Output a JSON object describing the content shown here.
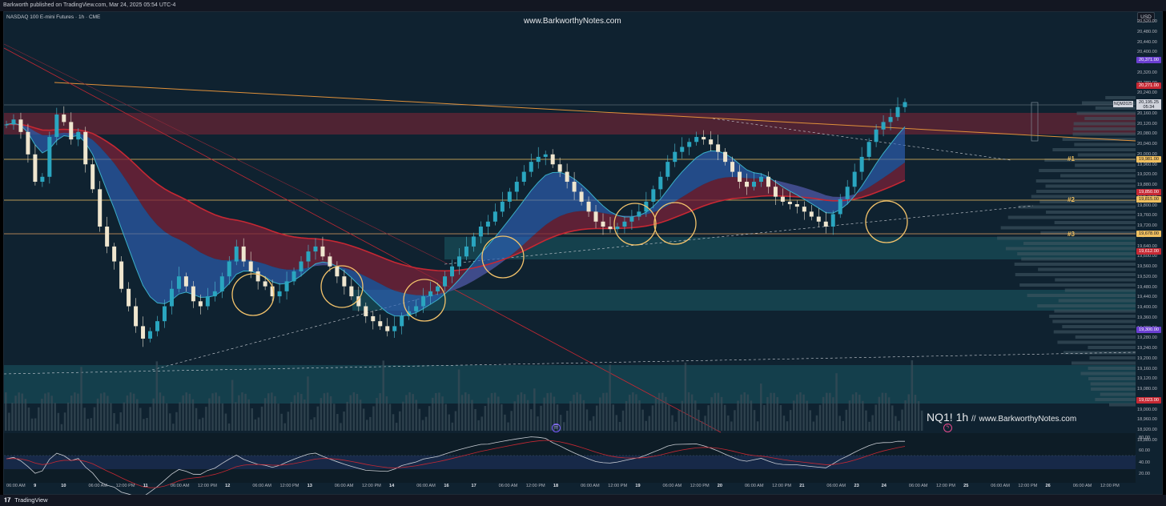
{
  "header": {
    "publisher": "Barkworth published on TradingView.com, Mar 24, 2025 05:54 UTC-4",
    "chart_title": "NASDAQ 100 E-mini Futures · 1h · CME",
    "watermark_top": "www.BarkworthyNotes.com",
    "currency": "USD"
  },
  "watermark": {
    "symbol": "NQ1! 1h",
    "sep": "//",
    "site": "www.BarkworthyNotes.com"
  },
  "price_axis": {
    "labels": [
      "20,520.00",
      "20,480.00",
      "20,440.00",
      "20,400.00",
      "20,360.00",
      "20,320.00",
      "20,280.00",
      "20,240.00",
      "20,200.00",
      "20,160.00",
      "20,120.00",
      "20,080.00",
      "20,040.00",
      "20,000.00",
      "19,960.00",
      "19,920.00",
      "19,880.00",
      "19,840.00",
      "19,800.00",
      "19,760.00",
      "19,720.00",
      "19,680.00",
      "19,640.00",
      "19,600.00",
      "19,560.00",
      "19,520.00",
      "19,480.00",
      "19,440.00",
      "19,400.00",
      "19,360.00",
      "19,320.00",
      "19,280.00",
      "19,240.00",
      "19,200.00",
      "19,160.00",
      "19,120.00",
      "19,080.00",
      "19,040.00",
      "19,000.00",
      "18,960.00",
      "18,920.00",
      "18,880.00"
    ]
  },
  "price_tags": {
    "tag_20371": "20,371.00",
    "tag_20271": "20,271.00",
    "tag_19981": "19,981.00",
    "tag_19850": "19,850.00",
    "tag_19815": "19,815.00",
    "tag_19678": "19,678.00",
    "tag_19612": "19,612.00",
    "tag_19300": "19,300.00",
    "tag_19023": "19,023.00",
    "nqm_symbol": "NQM2025",
    "nqm_price": "20,195.25",
    "nqm_countdown": "05:34",
    "colors": {
      "purple": "#6a3fd1",
      "red": "#c62833",
      "yellow": "#f0c060"
    }
  },
  "levels": {
    "l1": "#1",
    "l2": "#2",
    "l3": "#3"
  },
  "oscillator_axis": [
    "80.00",
    "60.00",
    "40.00",
    "20.00"
  ],
  "time_axis": [
    {
      "t": "06:00 AM"
    },
    {
      "t": "9",
      "day": true
    },
    {
      "t": "10",
      "day": true
    },
    {
      "t": "06:00 AM"
    },
    {
      "t": "12:00 PM"
    },
    {
      "t": "11",
      "day": true
    },
    {
      "t": "06:00 AM"
    },
    {
      "t": "12:00 PM"
    },
    {
      "t": "12",
      "day": true
    },
    {
      "t": "06:00 AM"
    },
    {
      "t": "12:00 PM"
    },
    {
      "t": "13",
      "day": true
    },
    {
      "t": "06:00 AM"
    },
    {
      "t": "12:00 PM"
    },
    {
      "t": "14",
      "day": true
    },
    {
      "t": "06:00 AM"
    },
    {
      "t": "16",
      "day": true
    },
    {
      "t": "17",
      "day": true
    },
    {
      "t": "06:00 AM"
    },
    {
      "t": "12:00 PM"
    },
    {
      "t": "18",
      "day": true
    },
    {
      "t": "06:00 AM"
    },
    {
      "t": "12:00 PM"
    },
    {
      "t": "19",
      "day": true
    },
    {
      "t": "06:00 AM"
    },
    {
      "t": "12:00 PM"
    },
    {
      "t": "20",
      "day": true
    },
    {
      "t": "06:00 AM"
    },
    {
      "t": "12:00 PM"
    },
    {
      "t": "21",
      "day": true
    },
    {
      "t": "06:00 AM"
    },
    {
      "t": "23",
      "day": true
    },
    {
      "t": "24",
      "day": true
    },
    {
      "t": "06:00 AM"
    },
    {
      "t": "12:00 PM"
    },
    {
      "t": "25",
      "day": true
    },
    {
      "t": "06:00 AM"
    },
    {
      "t": "12:00 PM"
    },
    {
      "t": "26",
      "day": true
    },
    {
      "t": "06:00 AM"
    },
    {
      "t": "12:00 PM"
    }
  ],
  "footer": {
    "brand": "TradingView"
  },
  "chart_data": {
    "type": "candlestick",
    "symbol": "NQ1!",
    "interval": "1h",
    "ylim": [
      18880,
      20520
    ],
    "horizontal_levels": [
      {
        "label": "#1",
        "price": 19981
      },
      {
        "label": "#2",
        "price": 19815
      },
      {
        "label": "#3",
        "price": 19678
      }
    ],
    "close_series": [
      20110,
      20130,
      20080,
      19990,
      19880,
      19900,
      20060,
      20150,
      20120,
      20050,
      20080,
      19950,
      19850,
      19700,
      19620,
      19560,
      19450,
      19380,
      19300,
      19250,
      19280,
      19320,
      19380,
      19450,
      19500,
      19460,
      19400,
      19380,
      19420,
      19440,
      19500,
      19560,
      19620,
      19560,
      19520,
      19480,
      19460,
      19420,
      19440,
      19480,
      19520,
      19560,
      19600,
      19620,
      19580,
      19540,
      19500,
      19460,
      19420,
      19380,
      19340,
      19320,
      19300,
      19280,
      19300,
      19340,
      19360,
      19380,
      19420,
      19440,
      19460,
      19500,
      19540,
      19580,
      19620,
      19660,
      19700,
      19720,
      19760,
      19800,
      19840,
      19880,
      19920,
      19960,
      19980,
      19990,
      19950,
      19920,
      19880,
      19840,
      19800,
      19760,
      19720,
      19700,
      19690,
      19700,
      19720,
      19740,
      19760,
      19800,
      19850,
      19900,
      19960,
      20000,
      20020,
      20040,
      20060,
      20050,
      20030,
      20000,
      19960,
      19920,
      19880,
      19860,
      19880,
      19900,
      19860,
      19820,
      19800,
      19790,
      19780,
      19760,
      19740,
      19720,
      19700,
      19750,
      19810,
      19860,
      19920,
      19980,
      20040,
      20090,
      20120,
      20140,
      20180,
      20200
    ]
  }
}
